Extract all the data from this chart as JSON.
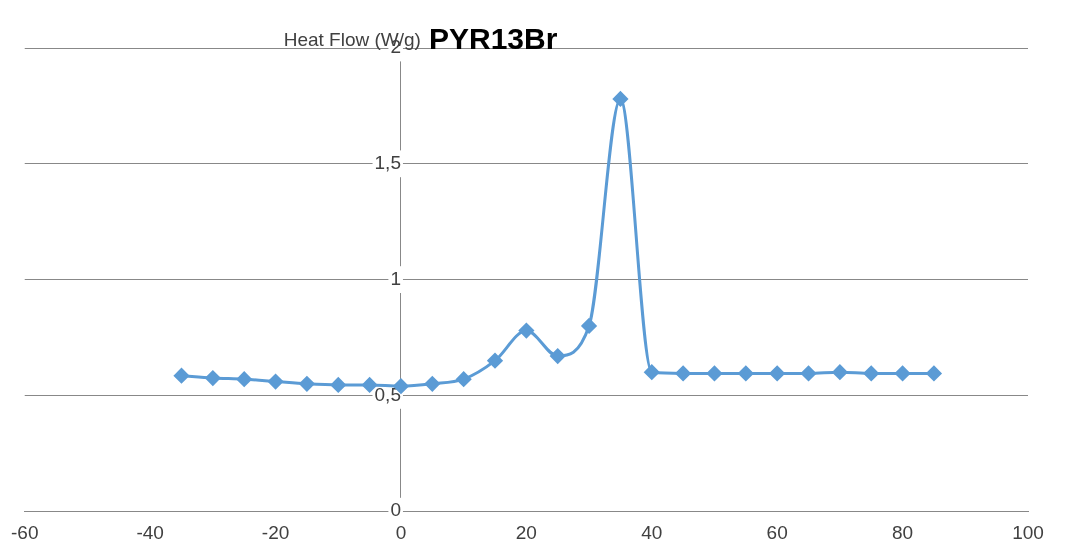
{
  "chart_data": {
    "type": "line",
    "title": "PYR13Br",
    "ylabel": "Heat Flow (W/g)",
    "x": [
      -35,
      -30,
      -25,
      -20,
      -15,
      -10,
      -5,
      0,
      5,
      10,
      15,
      20,
      25,
      30,
      35,
      40,
      45,
      50,
      55,
      60,
      65,
      70,
      75,
      80,
      85
    ],
    "series": [
      {
        "color": "#5b9bd5",
        "values": [
          0.585,
          0.575,
          0.57,
          0.56,
          0.55,
          0.545,
          0.545,
          0.54,
          0.55,
          0.57,
          0.65,
          0.78,
          0.67,
          0.8,
          1.78,
          0.6,
          0.595,
          0.595,
          0.595,
          0.595,
          0.595,
          0.6,
          0.595,
          0.595,
          0.595
        ]
      }
    ],
    "xlim": [
      -60,
      100
    ],
    "xticks": [
      -60,
      -40,
      -20,
      0,
      20,
      40,
      60,
      80,
      100
    ],
    "ylim": [
      0,
      2
    ],
    "yticks": [
      0,
      {
        "value": 0.5,
        "label": "0,5"
      },
      1,
      {
        "value": 1.5,
        "label": "1,5"
      },
      2
    ],
    "grid": "y",
    "legend": false,
    "marker": "diamond",
    "line_style": "solid"
  }
}
